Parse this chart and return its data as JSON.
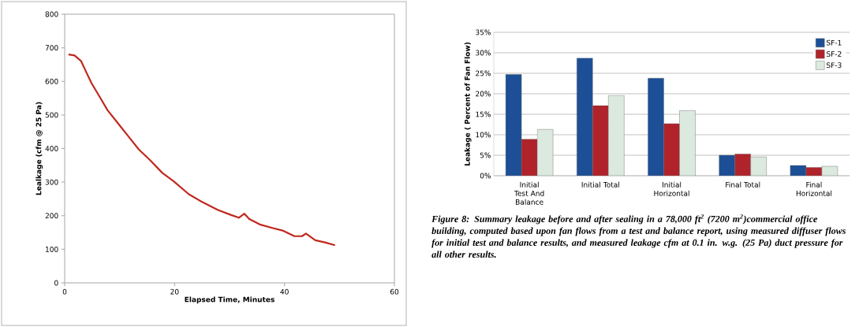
{
  "chart_data": [
    {
      "type": "line",
      "xlabel": "Elapsed Time, Minutes",
      "ylabel": "Lealkage (cfm @ 25 Pa)",
      "x": [
        0.7,
        1.8,
        3,
        4,
        4.9,
        6.4,
        7.8,
        9.7,
        11.6,
        13.5,
        15.5,
        17.8,
        19.8,
        22.6,
        25,
        27.9,
        30.3,
        31.7,
        32.7,
        33.6,
        35.5,
        37.9,
        39.8,
        41.8,
        43.2,
        43.9,
        45.6,
        47.5,
        49.2
      ],
      "values": [
        680,
        677,
        660,
        625,
        594,
        553,
        514,
        475,
        436,
        397,
        366,
        327,
        303,
        264,
        241,
        217,
        202,
        194,
        206,
        190,
        174,
        163,
        155,
        139,
        139,
        147,
        127,
        120,
        112
      ],
      "color": "#c0281e",
      "xlim": [
        0,
        60
      ],
      "ylim": [
        0,
        800
      ],
      "xticks": [
        0,
        20,
        40,
        60
      ],
      "yticks": [
        0,
        100,
        200,
        300,
        400,
        500,
        600,
        700,
        800
      ]
    },
    {
      "type": "bar",
      "ylabel": "Leakage ( Percent of Fan Flow)",
      "categories": [
        "Initial Test And Balance",
        "Initial Total",
        "Initial Horizontal",
        "Final Total",
        "Final Horizontal"
      ],
      "series": [
        {
          "name": "SF-1",
          "color": "#1c4f96",
          "values": [
            24.7,
            28.7,
            23.8,
            5.0,
            2.5
          ]
        },
        {
          "name": "SF-2",
          "color": "#b0232a",
          "values": [
            8.9,
            17.1,
            12.7,
            5.3,
            2.0
          ]
        },
        {
          "name": "SF-3",
          "color": "#dbe9df",
          "values": [
            11.3,
            19.6,
            15.9,
            4.6,
            2.3
          ]
        }
      ],
      "ylim": [
        0,
        35
      ],
      "yticks": [
        {
          "value": 0,
          "label": "0%"
        },
        {
          "value": 5,
          "label": "5%"
        },
        {
          "value": 10,
          "label": "10%"
        },
        {
          "value": 15,
          "label": "15%"
        },
        {
          "value": 20,
          "label": "20%"
        },
        {
          "value": 25,
          "label": "25%"
        },
        {
          "value": 30,
          "label": "30%"
        },
        {
          "value": 35,
          "label": "35%"
        }
      ],
      "grid": "y",
      "legend": "top right",
      "annotations": [
        "Figure 8: Summary leakage before and after sealing in a 78,000 ft$^{2}$ (7200 m$^{2}$)commercial office building, computed based upon fan flows from a test and balance report, using measured diffuser flows for initial test and balance results, and measured leakage cfm at 0.1 in. w.g. (25 Pa) duct pressure for all other results."
      ]
    }
  ]
}
